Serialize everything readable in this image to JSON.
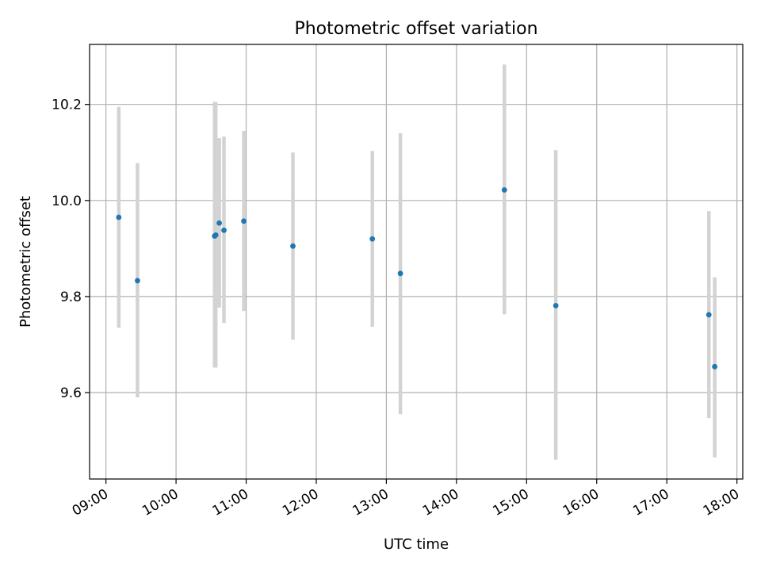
{
  "chart_data": {
    "type": "scatter",
    "title": "Photometric offset variation",
    "xlabel": "UTC time",
    "ylabel": "Photometric offset",
    "x_ticks": [
      "09:00",
      "10:00",
      "11:00",
      "12:00",
      "13:00",
      "14:00",
      "15:00",
      "16:00",
      "17:00",
      "18:00"
    ],
    "y_ticks": [
      "9.6",
      "9.8",
      "10.0",
      "10.2"
    ],
    "xlim": [
      "08:46",
      "18:05"
    ],
    "ylim": [
      9.42,
      10.325
    ],
    "grid": true,
    "colors": {
      "point": "#1f77b4",
      "errorbar": "#d3d3d3",
      "grid": "#b0b0b0"
    },
    "points": [
      {
        "x": "09:11",
        "y": 9.965,
        "err_low": 9.735,
        "err_high": 10.195
      },
      {
        "x": "09:27",
        "y": 9.833,
        "err_low": 9.59,
        "err_high": 10.078
      },
      {
        "x": "10:33",
        "y": 9.926,
        "err_low": 9.652,
        "err_high": 10.205
      },
      {
        "x": "10:34",
        "y": 9.928,
        "err_low": 9.652,
        "err_high": 10.205
      },
      {
        "x": "10:37",
        "y": 9.953,
        "err_low": 9.777,
        "err_high": 10.13
      },
      {
        "x": "10:41",
        "y": 9.938,
        "err_low": 9.745,
        "err_high": 10.133
      },
      {
        "x": "10:58",
        "y": 9.957,
        "err_low": 9.77,
        "err_high": 10.145
      },
      {
        "x": "11:40",
        "y": 9.905,
        "err_low": 9.71,
        "err_high": 10.1
      },
      {
        "x": "12:48",
        "y": 9.92,
        "err_low": 9.737,
        "err_high": 10.103
      },
      {
        "x": "13:12",
        "y": 9.848,
        "err_low": 9.555,
        "err_high": 10.14
      },
      {
        "x": "14:41",
        "y": 10.022,
        "err_low": 9.763,
        "err_high": 10.283
      },
      {
        "x": "15:25",
        "y": 9.781,
        "err_low": 9.46,
        "err_high": 10.105
      },
      {
        "x": "17:36",
        "y": 9.762,
        "err_low": 9.547,
        "err_high": 9.978
      },
      {
        "x": "17:41",
        "y": 9.654,
        "err_low": 9.465,
        "err_high": 9.84
      }
    ]
  }
}
